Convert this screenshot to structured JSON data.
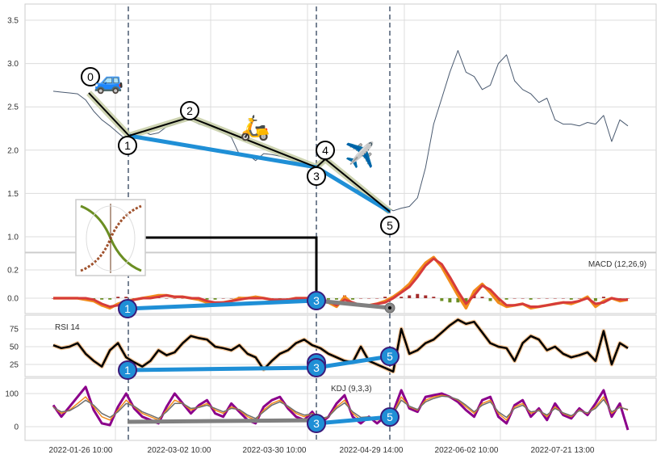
{
  "chart_data": {
    "type": "line",
    "x_tick_labels": [
      "2022-01-26 10:00",
      "2022-03-02 10:00",
      "2022-03-30 10:00",
      "2022-04-29 14:00",
      "2022-06-02 10:00",
      "2022-07-21 13:00"
    ],
    "colors": {
      "price": "#4a5a70",
      "macd": "#f28c1c",
      "signal": "#d63b3b",
      "hist_pos": "#a32b2b",
      "hist_neg": "#6b8e23",
      "rsi": "#000000",
      "rsi_glow": "#f6c89a",
      "kdj_k": "#f28c1c",
      "kdj_d": "#6e6e6e",
      "kdj_j": "#8b008b",
      "path": "#000000",
      "path_glow": "#c9cfaa",
      "trend": "#1f8fd6",
      "gray_trend": "#808080",
      "marker_fill": "#1f8fd6",
      "marker_stroke": "#3a1a7a"
    },
    "panels": [
      {
        "name": "price",
        "y_ticks": [
          "1.0",
          "1.5",
          "2.0",
          "2.5",
          "3.0",
          "3.5"
        ],
        "ylim": [
          0.8,
          3.65
        ],
        "series": {
          "price": [
            2.68,
            2.67,
            2.66,
            2.65,
            2.58,
            2.45,
            2.35,
            2.28,
            2.2,
            2.12,
            2.2,
            2.22,
            2.18,
            2.2,
            2.27,
            2.3,
            2.34,
            2.35,
            2.3,
            2.28,
            2.25,
            2.2,
            2.15,
            1.95,
            1.95,
            1.88,
            1.96,
            1.95,
            1.93,
            1.9,
            1.87,
            1.85,
            1.8,
            1.82,
            1.9,
            1.78,
            1.72,
            1.62,
            1.5,
            1.45,
            1.4,
            1.35,
            1.3,
            1.33,
            1.35,
            1.45,
            1.8,
            2.3,
            2.6,
            2.9,
            3.15,
            2.9,
            2.85,
            2.7,
            2.75,
            3.0,
            3.1,
            2.8,
            2.7,
            2.65,
            2.55,
            2.6,
            2.35,
            2.3,
            2.3,
            2.28,
            2.32,
            2.3,
            2.4,
            2.1,
            2.35,
            2.28
          ]
        }
      },
      {
        "name": "macd",
        "label": "MACD (12,26,9)",
        "y_ticks": [
          "0.0",
          "0.2"
        ],
        "ylim": [
          -0.11,
          0.32
        ],
        "series": {
          "macd": [
            0.0,
            0.0,
            0.0,
            0.0,
            -0.01,
            -0.02,
            -0.05,
            -0.07,
            -0.04,
            -0.02,
            -0.01,
            0.0,
            0.01,
            0.02,
            0.02,
            0.01,
            0.01,
            0.0,
            -0.01,
            -0.03,
            -0.04,
            -0.03,
            -0.02,
            0.0,
            0.0,
            0.01,
            0.0,
            -0.01,
            -0.02,
            -0.01,
            0.0,
            0.0,
            0.0,
            -0.02,
            -0.03,
            -0.06,
            0.01,
            -0.04,
            -0.05,
            -0.05,
            -0.04,
            -0.02,
            0.01,
            0.05,
            0.1,
            0.18,
            0.25,
            0.29,
            0.22,
            0.12,
            0.02,
            -0.07,
            0.05,
            0.1,
            0.04,
            -0.03,
            -0.06,
            -0.05,
            -0.04,
            -0.07,
            -0.06,
            -0.05,
            -0.04,
            -0.03,
            -0.04,
            -0.02,
            0.01,
            -0.06,
            -0.02,
            0.0,
            -0.02,
            -0.01
          ],
          "signal": [
            0.0,
            0.0,
            0.0,
            0.0,
            0.0,
            -0.01,
            -0.04,
            -0.06,
            -0.05,
            -0.03,
            -0.01,
            0.0,
            0.0,
            0.01,
            0.02,
            0.01,
            0.01,
            0.0,
            0.0,
            -0.02,
            -0.03,
            -0.03,
            -0.02,
            -0.01,
            0.0,
            0.0,
            0.0,
            -0.01,
            -0.01,
            -0.01,
            0.0,
            0.0,
            0.0,
            -0.01,
            -0.02,
            -0.05,
            -0.01,
            -0.03,
            -0.05,
            -0.05,
            -0.04,
            -0.03,
            0.0,
            0.04,
            0.08,
            0.15,
            0.23,
            0.28,
            0.24,
            0.15,
            0.05,
            -0.04,
            0.02,
            0.09,
            0.06,
            0.0,
            -0.05,
            -0.05,
            -0.04,
            -0.06,
            -0.06,
            -0.05,
            -0.04,
            -0.03,
            -0.03,
            -0.02,
            0.0,
            -0.04,
            -0.03,
            0.0,
            -0.01,
            -0.01
          ],
          "histogram": [
            0,
            0,
            0,
            0,
            -0.01,
            -0.01,
            -0.01,
            -0.01,
            0.01,
            0.01,
            0,
            0,
            0.01,
            0.01,
            0,
            0,
            0,
            0,
            -0.01,
            -0.01,
            -0.01,
            0,
            0,
            0.01,
            0,
            0.01,
            0,
            0,
            -0.01,
            0,
            0,
            0,
            0,
            -0.01,
            -0.01,
            -0.01,
            0.02,
            -0.01,
            0,
            0,
            0,
            0.01,
            0.01,
            0.01,
            0.02,
            0.03,
            0.02,
            0.01,
            -0.02,
            -0.03,
            -0.03,
            -0.03,
            0.03,
            0.01,
            -0.02,
            -0.03,
            -0.01,
            0,
            0,
            -0.01,
            0,
            0,
            0,
            0,
            -0.01,
            0,
            0.01,
            -0.02,
            0.01,
            0,
            -0.01,
            0
          ]
        }
      },
      {
        "name": "rsi",
        "label": "RSI 14",
        "y_ticks": [
          "25",
          "50",
          "75"
        ],
        "ylim": [
          5,
          92
        ],
        "series": {
          "rsi": [
            52,
            48,
            50,
            55,
            40,
            30,
            22,
            45,
            55,
            35,
            28,
            22,
            30,
            45,
            38,
            42,
            55,
            65,
            62,
            60,
            50,
            48,
            45,
            52,
            40,
            35,
            18,
            30,
            40,
            45,
            55,
            60,
            52,
            48,
            40,
            35,
            30,
            28,
            50,
            30,
            25,
            20,
            15,
            75,
            40,
            45,
            55,
            60,
            70,
            80,
            88,
            82,
            85,
            70,
            55,
            50,
            48,
            30,
            55,
            65,
            60,
            45,
            50,
            40,
            35,
            38,
            42,
            30,
            72,
            25,
            55,
            48
          ]
        }
      },
      {
        "name": "kdj",
        "label": "KDJ (9,3,3)",
        "y_ticks": [
          "0",
          "100"
        ],
        "ylim": [
          -30,
          135
        ],
        "series": {
          "k": [
            60,
            40,
            50,
            70,
            90,
            60,
            30,
            20,
            50,
            80,
            60,
            40,
            30,
            20,
            50,
            80,
            70,
            50,
            60,
            70,
            50,
            40,
            60,
            50,
            30,
            20,
            50,
            70,
            80,
            60,
            40,
            30,
            40,
            20,
            30,
            60,
            80,
            40,
            20,
            30,
            20,
            30,
            40,
            90,
            60,
            50,
            80,
            90,
            95,
            90,
            80,
            60,
            40,
            70,
            80,
            40,
            20,
            60,
            70,
            40,
            50,
            30,
            60,
            40,
            30,
            50,
            40,
            60,
            90,
            40,
            60,
            50
          ],
          "d": [
            58,
            45,
            48,
            62,
            80,
            65,
            40,
            28,
            45,
            70,
            62,
            45,
            35,
            25,
            45,
            70,
            70,
            55,
            58,
            65,
            55,
            45,
            55,
            52,
            35,
            25,
            45,
            65,
            75,
            62,
            45,
            35,
            38,
            25,
            30,
            55,
            72,
            45,
            28,
            30,
            25,
            30,
            38,
            80,
            62,
            52,
            75,
            85,
            92,
            90,
            82,
            65,
            45,
            65,
            75,
            45,
            28,
            55,
            65,
            45,
            48,
            35,
            55,
            42,
            33,
            48,
            42,
            55,
            82,
            45,
            58,
            52
          ],
          "j": [
            65,
            30,
            60,
            90,
            120,
            50,
            10,
            5,
            60,
            100,
            55,
            30,
            20,
            10,
            60,
            100,
            70,
            40,
            65,
            80,
            40,
            30,
            70,
            45,
            20,
            10,
            60,
            80,
            90,
            55,
            30,
            20,
            45,
            10,
            30,
            70,
            95,
            30,
            10,
            30,
            10,
            30,
            45,
            110,
            55,
            45,
            90,
            95,
            100,
            90,
            75,
            50,
            30,
            80,
            90,
            30,
            10,
            65,
            80,
            30,
            55,
            20,
            70,
            35,
            25,
            55,
            35,
            70,
            110,
            30,
            70,
            -10
          ]
        }
      }
    ],
    "annotations": {
      "price_markers": [
        "0",
        "1",
        "2",
        "3",
        "4",
        "5"
      ],
      "macd_markers": [
        "1",
        "3"
      ],
      "rsi_markers": [
        "1",
        "3",
        "5"
      ],
      "kdj_markers": [
        "3",
        "5"
      ],
      "emoji": {
        "car": "🚙",
        "scooter": "🛵",
        "airplane": "✈️"
      }
    }
  }
}
